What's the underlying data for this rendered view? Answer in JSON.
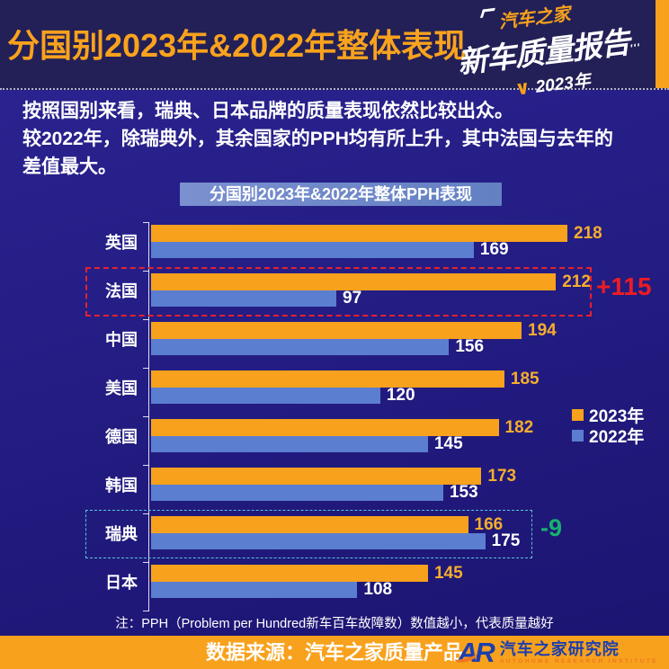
{
  "header": {
    "title": "分国别2023年&2022年整体表现",
    "logo": {
      "brand": "汽车之家",
      "product": "新车质量报告",
      "year": "2023年",
      "check_mark": "∨",
      "marks": "'''"
    }
  },
  "intro": {
    "line1": "按照国别来看，瑞典、日本品牌的质量表现依然比较出众。",
    "line2": "较2022年，除瑞典外，其余国家的PPH均有所上升，其中法国与去年的",
    "line3": "差值最大。"
  },
  "chart_data": {
    "type": "bar",
    "orientation": "horizontal",
    "title": "分国别2023年&2022年整体PPH表现",
    "categories": [
      "英国",
      "法国",
      "中国",
      "美国",
      "德国",
      "韩国",
      "瑞典",
      "日本"
    ],
    "series": [
      {
        "name": "2023年",
        "color": "#f8a11c",
        "label_color": "#f6ad2e",
        "values": [
          218,
          212,
          194,
          185,
          182,
          173,
          166,
          145
        ]
      },
      {
        "name": "2022年",
        "color": "#5b7ed0",
        "label_color": "#ffffff",
        "values": [
          169,
          97,
          156,
          120,
          145,
          153,
          175,
          108
        ]
      }
    ],
    "xlim": [
      0,
      218
    ],
    "grid": false,
    "legend_position": "right",
    "annotations": [
      {
        "category": "法国",
        "label": "+115",
        "color": "#ed1c24",
        "box_color": "#e8212b"
      },
      {
        "category": "瑞典",
        "label": "-9",
        "color": "#17b26f",
        "box_color": "#5ac6d6"
      }
    ]
  },
  "note": "注：PPH（Problem per Hundred新车百车故障数）数值越小，代表质量越好",
  "footer": {
    "source": "数据来源：汽车之家质量产品",
    "logo_text": "AR",
    "institute_cn": "汽车之家研究院",
    "institute_en": "AUTOHOME  RESEARCH  INSTITUTE"
  },
  "colors": {
    "background": "#241d84",
    "header_background": "#232057",
    "accent_orange": "#f8a11c",
    "bar_blue": "#5b7ed0",
    "chart_title_box": "#6d87c6",
    "highlight_red": "#ed1c24",
    "highlight_green": "#17b26f"
  }
}
